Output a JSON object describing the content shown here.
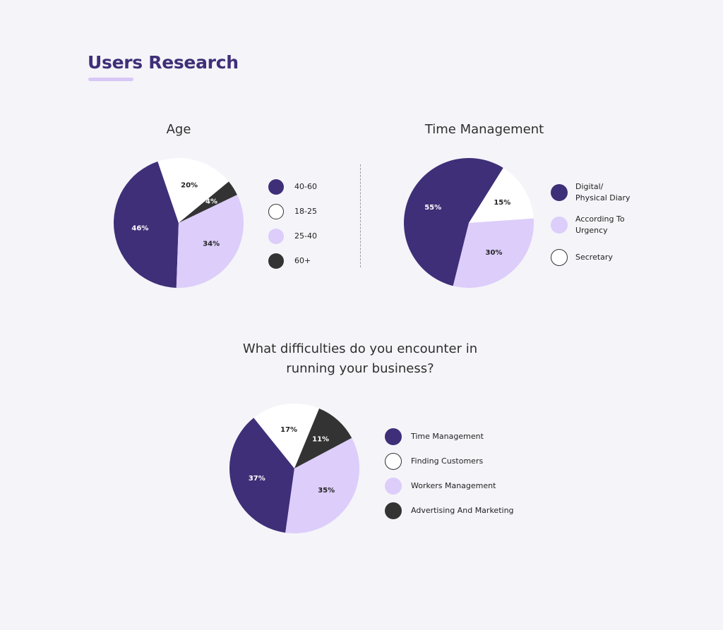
{
  "page": {
    "title": "Users Research"
  },
  "chart_data": [
    {
      "id": "age",
      "type": "pie",
      "title": "Age",
      "slices": [
        {
          "label": "40-60",
          "value": 46,
          "text": "46%",
          "color": "#3f2f78"
        },
        {
          "label": "18-25",
          "value": 20,
          "text": "20%",
          "color": "#ffffff"
        },
        {
          "label": "60+",
          "value": 4,
          "text": "4%",
          "color": "#333333"
        },
        {
          "label": "25-40",
          "value": 34,
          "text": "34%",
          "color": "#dccdfa"
        }
      ],
      "legend": [
        {
          "label": "40-60",
          "color": "#3f2f78"
        },
        {
          "label": "18-25",
          "color": "#ffffff"
        },
        {
          "label": "25-40",
          "color": "#dccdfa"
        },
        {
          "label": "60+",
          "color": "#333333"
        }
      ],
      "legend_position": "right"
    },
    {
      "id": "time-management",
      "type": "pie",
      "title": "Time Management",
      "slices": [
        {
          "label": "Digital/ Physical Diary",
          "value": 55,
          "text": "55%",
          "color": "#3f2f78"
        },
        {
          "label": "Secretary",
          "value": 15,
          "text": "15%",
          "color": "#ffffff"
        },
        {
          "label": "According To Urgency",
          "value": 30,
          "text": "30%",
          "color": "#dccdfa"
        }
      ],
      "legend": [
        {
          "label": "Digital/\nPhysical Diary",
          "color": "#3f2f78"
        },
        {
          "label": "According To\nUrgency",
          "color": "#dccdfa"
        },
        {
          "label": "Secretary",
          "color": "#ffffff"
        }
      ],
      "legend_position": "right"
    },
    {
      "id": "difficulties",
      "type": "pie",
      "title_lines": [
        "What difficulties do you encounter in",
        "running your business?"
      ],
      "slices": [
        {
          "label": "Time Management",
          "value": 37,
          "text": "37%",
          "color": "#3f2f78"
        },
        {
          "label": "Finding Customers",
          "value": 17,
          "text": "17%",
          "color": "#ffffff"
        },
        {
          "label": "Advertising And Marketing",
          "value": 11,
          "text": "11%",
          "color": "#333333"
        },
        {
          "label": "Workers Management",
          "value": 35,
          "text": "35%",
          "color": "#dccdfa"
        }
      ],
      "legend": [
        {
          "label": "Time Management",
          "color": "#3f2f78"
        },
        {
          "label": "Finding Customers",
          "color": "#ffffff"
        },
        {
          "label": "Workers Management",
          "color": "#dccdfa"
        },
        {
          "label": "Advertising And Marketing",
          "color": "#333333"
        }
      ],
      "legend_position": "right"
    }
  ]
}
